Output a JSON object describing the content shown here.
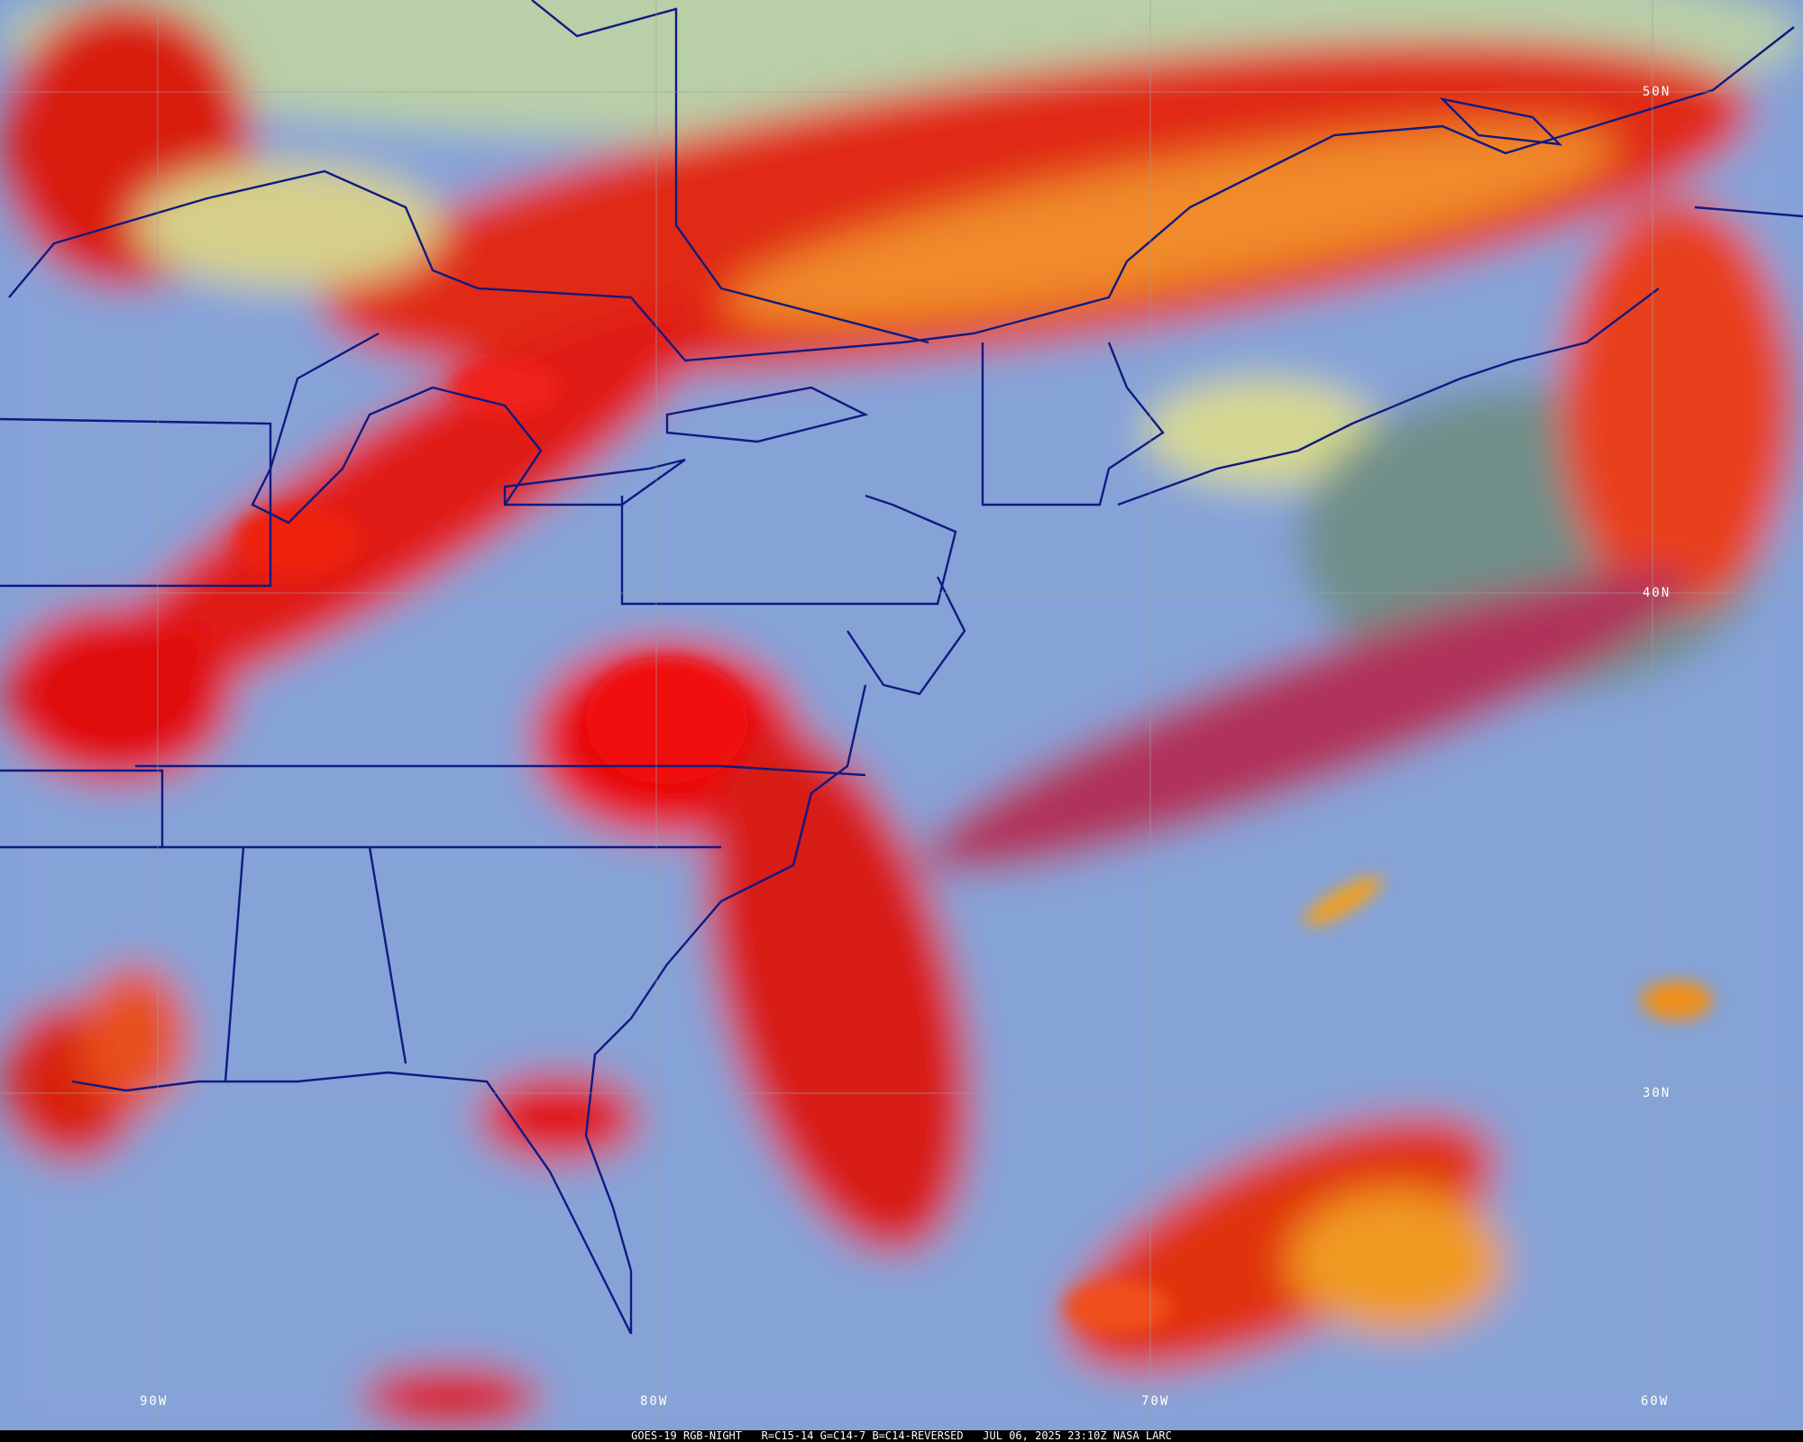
{
  "image": {
    "caption": "GOES-19 RGB-NIGHT   R=C15-14 G=C14-7 B=C14-REVERSED   JUL 06, 2025 23:10Z NASA LARC",
    "latitude_labels": [
      "50N",
      "40N",
      "30N"
    ],
    "longitude_labels": [
      "90W",
      "80W",
      "70W",
      "60W"
    ],
    "colors": {
      "clear_sky": "#7f9fd6",
      "cloud_red": "#e01010",
      "cloud_orange": "#f0901c",
      "low_cloud_yellow": "#d8d890",
      "boundaries": "#101a80",
      "grid": "#a0a0a0"
    }
  }
}
